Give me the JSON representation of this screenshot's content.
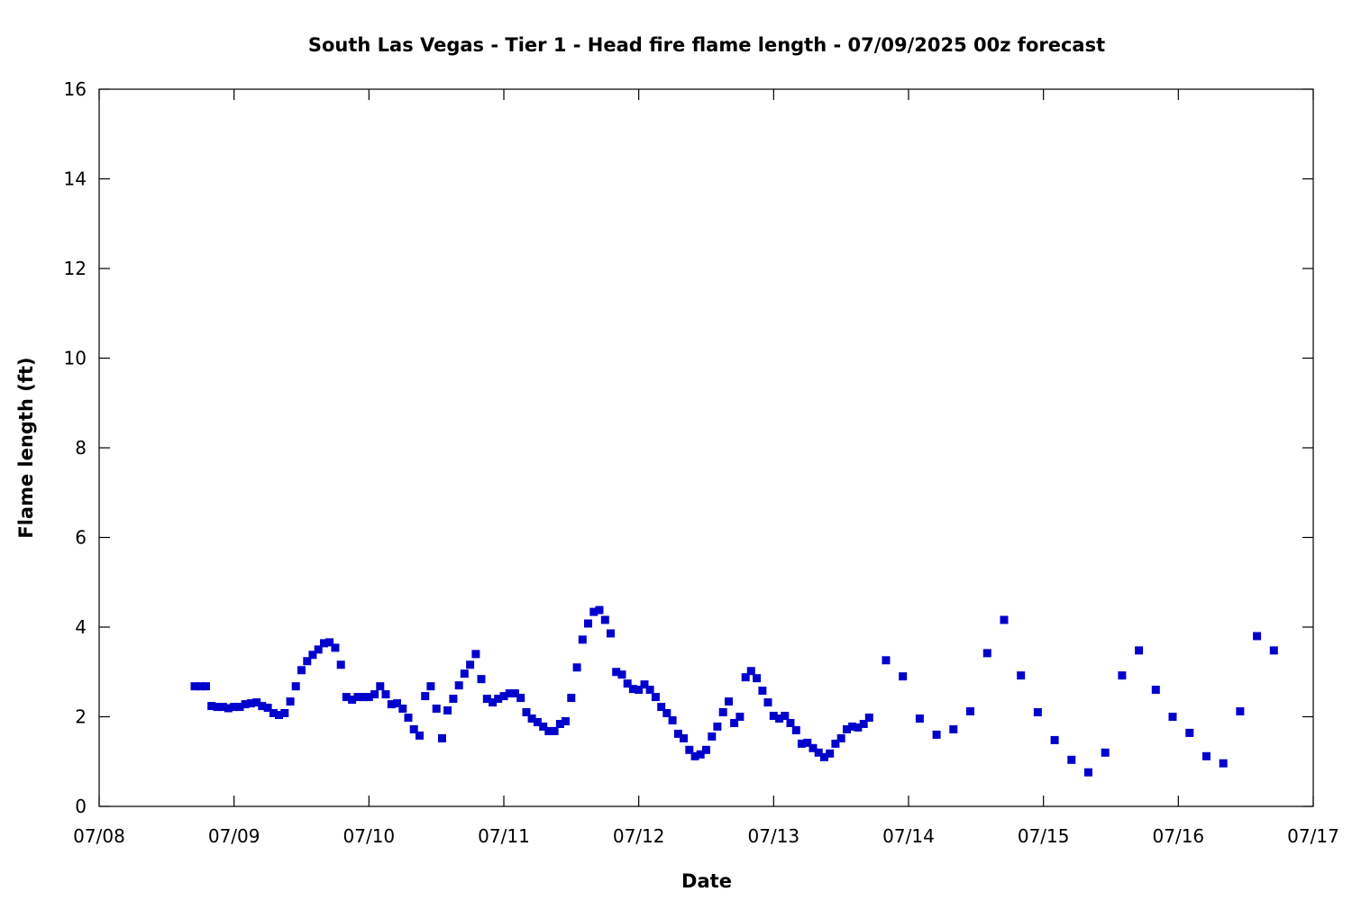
{
  "chart_data": {
    "type": "scatter",
    "title": "South Las Vegas - Tier 1 - Head fire flame length - 07/09/2025 00z forecast",
    "xlabel": "Date",
    "ylabel": "Flame length (ft)",
    "x_unit": "day of July 2025",
    "xlim": [
      8,
      17
    ],
    "ylim": [
      0,
      16
    ],
    "x_ticks": [
      8,
      9,
      10,
      11,
      12,
      13,
      14,
      15,
      16,
      17
    ],
    "x_tick_labels": [
      "07/08",
      "07/09",
      "07/10",
      "07/11",
      "07/12",
      "07/13",
      "07/14",
      "07/15",
      "07/16",
      "07/17"
    ],
    "y_ticks": [
      0,
      2,
      4,
      6,
      8,
      10,
      12,
      14,
      16
    ],
    "y_tick_labels": [
      "0",
      "2",
      "4",
      "6",
      "8",
      "10",
      "12",
      "14",
      "16"
    ],
    "grid": false,
    "legend": "none",
    "marker": "square",
    "series": [
      {
        "color": "#0000cc",
        "points": [
          [
            8.708,
            2.68
          ],
          [
            8.75,
            2.68
          ],
          [
            8.792,
            2.68
          ],
          [
            8.833,
            2.24
          ],
          [
            8.875,
            2.22
          ],
          [
            8.917,
            2.22
          ],
          [
            8.958,
            2.19
          ],
          [
            9.0,
            2.22
          ],
          [
            9.042,
            2.22
          ],
          [
            9.083,
            2.28
          ],
          [
            9.125,
            2.3
          ],
          [
            9.167,
            2.32
          ],
          [
            9.208,
            2.24
          ],
          [
            9.25,
            2.2
          ],
          [
            9.292,
            2.08
          ],
          [
            9.333,
            2.04
          ],
          [
            9.375,
            2.08
          ],
          [
            9.417,
            2.34
          ],
          [
            9.458,
            2.68
          ],
          [
            9.5,
            3.04
          ],
          [
            9.542,
            3.24
          ],
          [
            9.583,
            3.38
          ],
          [
            9.625,
            3.5
          ],
          [
            9.667,
            3.64
          ],
          [
            9.708,
            3.66
          ],
          [
            9.75,
            3.54
          ],
          [
            9.792,
            3.16
          ],
          [
            9.833,
            2.44
          ],
          [
            9.875,
            2.38
          ],
          [
            9.917,
            2.44
          ],
          [
            9.958,
            2.44
          ],
          [
            10.0,
            2.44
          ],
          [
            10.042,
            2.5
          ],
          [
            10.083,
            2.68
          ],
          [
            10.125,
            2.5
          ],
          [
            10.167,
            2.28
          ],
          [
            10.208,
            2.3
          ],
          [
            10.25,
            2.18
          ],
          [
            10.292,
            1.98
          ],
          [
            10.333,
            1.72
          ],
          [
            10.375,
            1.58
          ],
          [
            10.417,
            2.46
          ],
          [
            10.458,
            2.68
          ],
          [
            10.5,
            2.18
          ],
          [
            10.542,
            1.52
          ],
          [
            10.583,
            2.14
          ],
          [
            10.625,
            2.4
          ],
          [
            10.667,
            2.7
          ],
          [
            10.708,
            2.96
          ],
          [
            10.75,
            3.16
          ],
          [
            10.792,
            3.4
          ],
          [
            10.833,
            2.84
          ],
          [
            10.875,
            2.4
          ],
          [
            10.917,
            2.32
          ],
          [
            10.958,
            2.4
          ],
          [
            11.0,
            2.46
          ],
          [
            11.042,
            2.52
          ],
          [
            11.083,
            2.52
          ],
          [
            11.125,
            2.42
          ],
          [
            11.167,
            2.1
          ],
          [
            11.208,
            1.96
          ],
          [
            11.25,
            1.88
          ],
          [
            11.292,
            1.78
          ],
          [
            11.333,
            1.68
          ],
          [
            11.375,
            1.68
          ],
          [
            11.417,
            1.84
          ],
          [
            11.458,
            1.9
          ],
          [
            11.5,
            2.42
          ],
          [
            11.542,
            3.1
          ],
          [
            11.583,
            3.72
          ],
          [
            11.625,
            4.08
          ],
          [
            11.667,
            4.34
          ],
          [
            11.708,
            4.38
          ],
          [
            11.75,
            4.16
          ],
          [
            11.792,
            3.86
          ],
          [
            11.833,
            3.0
          ],
          [
            11.875,
            2.94
          ],
          [
            11.917,
            2.74
          ],
          [
            11.958,
            2.62
          ],
          [
            12.0,
            2.6
          ],
          [
            12.042,
            2.72
          ],
          [
            12.083,
            2.6
          ],
          [
            12.125,
            2.44
          ],
          [
            12.167,
            2.22
          ],
          [
            12.208,
            2.08
          ],
          [
            12.25,
            1.92
          ],
          [
            12.292,
            1.62
          ],
          [
            12.333,
            1.52
          ],
          [
            12.375,
            1.26
          ],
          [
            12.417,
            1.12
          ],
          [
            12.458,
            1.16
          ],
          [
            12.5,
            1.26
          ],
          [
            12.542,
            1.56
          ],
          [
            12.583,
            1.78
          ],
          [
            12.625,
            2.1
          ],
          [
            12.667,
            2.34
          ],
          [
            12.708,
            1.86
          ],
          [
            12.75,
            2.0
          ],
          [
            12.792,
            2.88
          ],
          [
            12.833,
            3.02
          ],
          [
            12.875,
            2.86
          ],
          [
            12.917,
            2.58
          ],
          [
            12.958,
            2.32
          ],
          [
            13.0,
            2.02
          ],
          [
            13.042,
            1.96
          ],
          [
            13.083,
            2.02
          ],
          [
            13.125,
            1.86
          ],
          [
            13.167,
            1.7
          ],
          [
            13.208,
            1.4
          ],
          [
            13.25,
            1.42
          ],
          [
            13.292,
            1.3
          ],
          [
            13.333,
            1.2
          ],
          [
            13.375,
            1.1
          ],
          [
            13.417,
            1.18
          ],
          [
            13.458,
            1.4
          ],
          [
            13.5,
            1.52
          ],
          [
            13.542,
            1.72
          ],
          [
            13.583,
            1.78
          ],
          [
            13.625,
            1.76
          ],
          [
            13.667,
            1.84
          ],
          [
            13.708,
            1.98
          ],
          [
            13.833,
            3.26
          ],
          [
            13.958,
            2.9
          ],
          [
            14.083,
            1.96
          ],
          [
            14.208,
            1.6
          ],
          [
            14.333,
            1.72
          ],
          [
            14.458,
            2.12
          ],
          [
            14.583,
            3.42
          ],
          [
            14.708,
            4.16
          ],
          [
            14.833,
            2.92
          ],
          [
            14.958,
            2.1
          ],
          [
            15.083,
            1.48
          ],
          [
            15.208,
            1.04
          ],
          [
            15.333,
            0.76
          ],
          [
            15.458,
            1.2
          ],
          [
            15.583,
            2.92
          ],
          [
            15.708,
            3.48
          ],
          [
            15.833,
            2.6
          ],
          [
            15.958,
            2.0
          ],
          [
            16.083,
            1.64
          ],
          [
            16.208,
            1.12
          ],
          [
            16.333,
            0.96
          ],
          [
            16.458,
            2.12
          ],
          [
            16.583,
            3.8
          ],
          [
            16.708,
            3.48
          ]
        ]
      }
    ]
  }
}
